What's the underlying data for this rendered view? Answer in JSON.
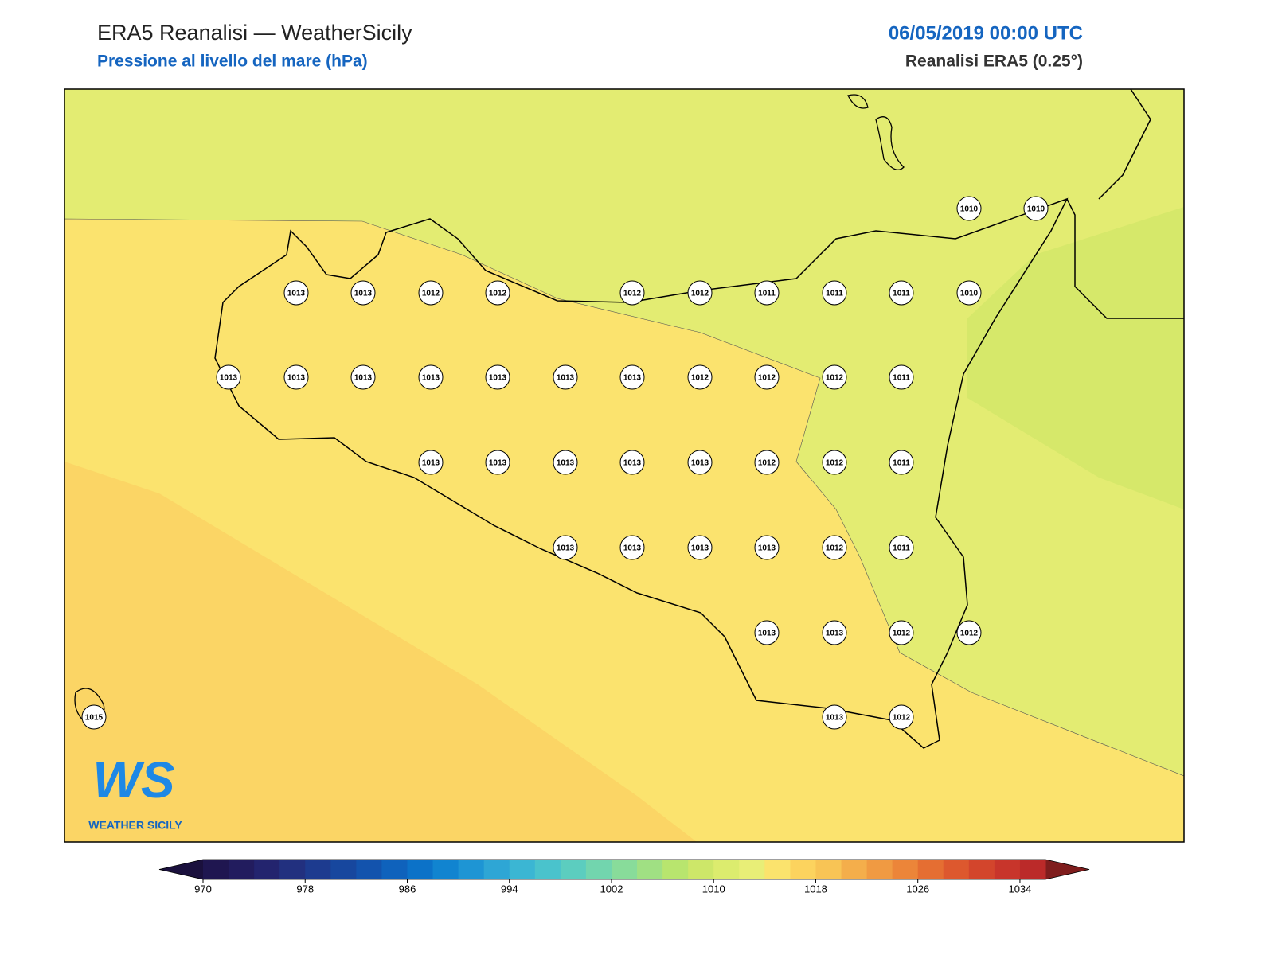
{
  "header": {
    "title": "ERA5 Reanalisi — WeatherSicily",
    "subtitle": "Pressione al livello del mare (hPa)",
    "datetime": "06/05/2019 00:00 UTC",
    "source": "Reanalisi ERA5 (0.25°)"
  },
  "stations": [
    1010,
    1010,
    1013,
    1013,
    1012,
    1012,
    1012,
    1012,
    1011,
    1011,
    1011,
    1010,
    1013,
    1013,
    1013,
    1013,
    1013,
    1013,
    1013,
    1012,
    1012,
    1012,
    1011,
    1013,
    1013,
    1013,
    1013,
    1013,
    1012,
    1012,
    1011,
    1013,
    1013,
    1013,
    1013,
    1012,
    1011,
    1013,
    1013,
    1012,
    1012,
    1015,
    1013,
    1012
  ],
  "colorbar": {
    "range": [
      970,
      1036
    ],
    "ticks": [
      970,
      978,
      986,
      994,
      1002,
      1010,
      1018,
      1026,
      1034
    ],
    "colors": [
      "#1f1650",
      "#221c5e",
      "#23246e",
      "#22307f",
      "#1d3b8f",
      "#17479e",
      "#1353ad",
      "#0f62bc",
      "#0c72c8",
      "#1184d0",
      "#1e95d4",
      "#2ea6d5",
      "#3bb6d3",
      "#4ac3cc",
      "#5ccdbf",
      "#72d5ae",
      "#88dc9a",
      "#a0e083",
      "#b8e56e",
      "#cde769",
      "#dcec6e",
      "#e8ee77",
      "#fbe36d",
      "#fcd35e",
      "#f8c455",
      "#f4ae4b",
      "#f09a42",
      "#ec8539",
      "#e56e32",
      "#dd582e",
      "#d3452c",
      "#c8352b",
      "#bb2a29"
    ],
    "under": "#1a103d",
    "over": "#7f1d1d"
  },
  "logo": {
    "mark": "WS",
    "name": "WEATHER SICILY"
  }
}
